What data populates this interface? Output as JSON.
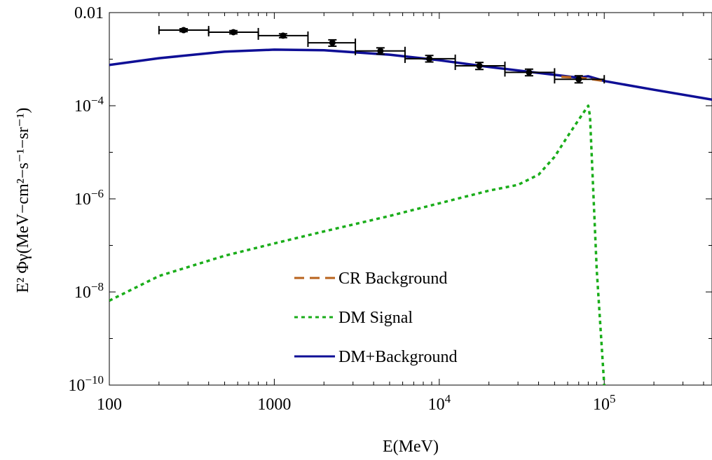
{
  "chart_data": {
    "type": "line",
    "title": "",
    "xlabel": "E(MeV)",
    "ylabel": "E² Φγ(MeV−cm²−s⁻¹−sr⁻¹)",
    "xscale": "log",
    "yscale": "log",
    "xlim": [
      100,
      450000
    ],
    "ylim": [
      1e-10,
      0.01
    ],
    "grid": false,
    "legend_position": "center-bottom",
    "x_ticks": [
      {
        "value": 100,
        "base": "100",
        "exp": ""
      },
      {
        "value": 1000,
        "base": "1000",
        "exp": ""
      },
      {
        "value": 10000,
        "base": "10",
        "exp": "4"
      },
      {
        "value": 100000,
        "base": "10",
        "exp": "5"
      }
    ],
    "y_ticks": [
      {
        "value": 0.01,
        "base": "0.01",
        "exp": ""
      },
      {
        "value": 0.0001,
        "base": "10",
        "exp": "−4"
      },
      {
        "value": 1e-06,
        "base": "10",
        "exp": "−6"
      },
      {
        "value": 1e-08,
        "base": "10",
        "exp": "−8"
      },
      {
        "value": 1e-10,
        "base": "10",
        "exp": "−10"
      }
    ],
    "series": [
      {
        "name": "CR Background",
        "style": "dashed",
        "color": "#b8621c",
        "x": [
          55000,
          70000,
          85000,
          100000
        ],
        "y": [
          0.00042,
          0.0004,
          0.00037,
          0.00034
        ]
      },
      {
        "name": "DM Signal",
        "style": "dotted",
        "color": "#1aad1a",
        "x": [
          100,
          200,
          500,
          1000,
          2000,
          5000,
          10000,
          20000,
          30000,
          40000,
          50000,
          60000,
          70000,
          80000,
          82000,
          90000,
          100000
        ],
        "y": [
          6.5e-09,
          2.2e-08,
          6e-08,
          1.1e-07,
          2e-07,
          4.3e-07,
          8e-07,
          1.5e-06,
          2e-06,
          3.3e-06,
          8e-06,
          2.2e-05,
          5e-05,
          0.0001,
          6e-05,
          3e-08,
          1e-10
        ]
      },
      {
        "name": "DM+Background",
        "style": "solid",
        "color": "#0f0f96",
        "x": [
          100,
          200,
          500,
          1000,
          2000,
          5000,
          10000,
          20000,
          50000,
          70000,
          80000,
          90000,
          100000,
          200000,
          450000
        ],
        "y": [
          0.00075,
          0.00105,
          0.00145,
          0.0016,
          0.00155,
          0.00125,
          0.00095,
          0.00068,
          0.00046,
          0.0004,
          0.00043,
          0.00038,
          0.00034,
          0.00022,
          0.000135
        ]
      }
    ],
    "data_points": {
      "color": "#000000",
      "points": [
        {
          "x": 282,
          "y": 0.0042,
          "xlo": 200,
          "xhi": 400,
          "ylo": 0.0039,
          "yhi": 0.0045
        },
        {
          "x": 565,
          "y": 0.0038,
          "xlo": 400,
          "xhi": 800,
          "ylo": 0.0035,
          "yhi": 0.0041
        },
        {
          "x": 1130,
          "y": 0.0032,
          "xlo": 800,
          "xhi": 1600,
          "ylo": 0.0029,
          "yhi": 0.0035
        },
        {
          "x": 2250,
          "y": 0.00225,
          "xlo": 1600,
          "xhi": 3100,
          "ylo": 0.0019,
          "yhi": 0.0026
        },
        {
          "x": 4400,
          "y": 0.0015,
          "xlo": 3100,
          "xhi": 6200,
          "ylo": 0.00128,
          "yhi": 0.00175
        },
        {
          "x": 8700,
          "y": 0.00102,
          "xlo": 6200,
          "xhi": 12500,
          "ylo": 0.00087,
          "yhi": 0.0012
        },
        {
          "x": 17500,
          "y": 0.00072,
          "xlo": 12500,
          "xhi": 25000,
          "ylo": 0.0006,
          "yhi": 0.00085
        },
        {
          "x": 35000,
          "y": 0.00052,
          "xlo": 25000,
          "xhi": 50000,
          "ylo": 0.00044,
          "yhi": 0.00061
        },
        {
          "x": 70000,
          "y": 0.00037,
          "xlo": 50000,
          "xhi": 100000,
          "ylo": 0.00031,
          "yhi": 0.00044
        }
      ]
    }
  }
}
